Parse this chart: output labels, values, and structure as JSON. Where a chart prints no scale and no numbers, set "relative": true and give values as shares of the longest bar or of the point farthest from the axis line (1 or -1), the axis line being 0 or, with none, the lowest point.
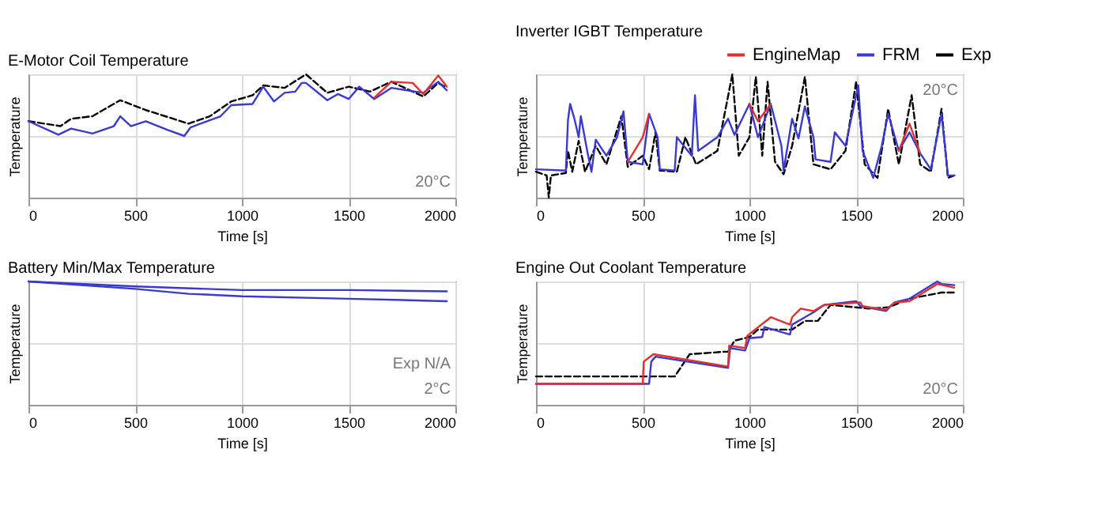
{
  "chart_data": [
    {
      "type": "line",
      "title": "E-Motor Coil Temperature",
      "xlabel": "Time [s]",
      "ylabel": "Temperature",
      "relative": true,
      "xlim": [
        0,
        2000
      ],
      "xticks": [
        0,
        500,
        1000,
        1500,
        2000
      ],
      "grid": true,
      "legend": false,
      "annotations": [
        "20°C"
      ],
      "series": [
        {
          "color": "#e03030",
          "x": [
            1620,
            1700,
            1800,
            1850,
            1920,
            1960
          ],
          "values": [
            0.81,
            0.94,
            0.93,
            0.84,
            0.99,
            0.9
          ]
        },
        {
          "color": "#3a3ad0",
          "x": [
            0,
            140,
            200,
            300,
            400,
            430,
            480,
            550,
            650,
            730,
            760,
            900,
            950,
            1050,
            1100,
            1150,
            1200,
            1250,
            1280,
            1300,
            1400,
            1450,
            1500,
            1550,
            1620,
            1700,
            1850,
            1920,
            1960
          ],
          "values": [
            0.62,
            0.51,
            0.56,
            0.52,
            0.58,
            0.66,
            0.58,
            0.62,
            0.55,
            0.5,
            0.57,
            0.66,
            0.75,
            0.76,
            0.9,
            0.78,
            0.85,
            0.86,
            0.93,
            0.93,
            0.79,
            0.84,
            0.8,
            0.9,
            0.8,
            0.89,
            0.85,
            0.94,
            0.87
          ]
        },
        {
          "color": "#000000",
          "line_style": "dashed",
          "x": [
            0,
            150,
            200,
            300,
            430,
            550,
            750,
            850,
            950,
            1050,
            1100,
            1200,
            1300,
            1400,
            1500,
            1600,
            1700,
            1850,
            1920,
            1960
          ],
          "values": [
            0.62,
            0.58,
            0.64,
            0.66,
            0.79,
            0.71,
            0.6,
            0.66,
            0.78,
            0.83,
            0.91,
            0.89,
            1.0,
            0.85,
            0.9,
            0.86,
            0.94,
            0.82,
            0.93,
            0.89
          ]
        }
      ]
    },
    {
      "type": "line",
      "title": "Inverter IGBT Temperature",
      "xlabel": "Time [s]",
      "ylabel": "Temperature",
      "relative": true,
      "xlim": [
        0,
        2000
      ],
      "xticks": [
        0,
        500,
        1000,
        1500,
        2000
      ],
      "grid": true,
      "legend": "top right",
      "annotations": [
        "20°C"
      ],
      "series": [
        {
          "name": "EngineMap",
          "color": "#e03030",
          "x": [
            430,
            500,
            530,
            800,
            1000,
            1040,
            1100,
            1400,
            1700,
            1750,
            1800
          ],
          "values": [
            0.29,
            0.49,
            0.68,
            null,
            0.76,
            0.62,
            0.76,
            null,
            0.38,
            0.6,
            0.36
          ]
        },
        {
          "name": "FRM",
          "color": "#3a3ad0",
          "x": [
            0,
            140,
            150,
            160,
            180,
            200,
            210,
            240,
            260,
            280,
            330,
            380,
            410,
            430,
            500,
            530,
            570,
            580,
            650,
            660,
            730,
            745,
            760,
            850,
            900,
            930,
            1000,
            1040,
            1100,
            1150,
            1160,
            1200,
            1230,
            1260,
            1300,
            1310,
            1380,
            1400,
            1450,
            1510,
            1530,
            1580,
            1620,
            1650,
            1700,
            1750,
            1800,
            1850,
            1900,
            1930,
            1960
          ],
          "values": [
            0.23,
            0.22,
            0.63,
            0.76,
            0.64,
            0.49,
            0.66,
            0.38,
            0.21,
            0.47,
            0.34,
            0.49,
            0.7,
            0.29,
            0.27,
            0.68,
            0.49,
            0.23,
            0.22,
            0.49,
            0.34,
            0.83,
            0.38,
            0.49,
            0.64,
            0.51,
            0.76,
            0.49,
            0.76,
            0.42,
            0.22,
            0.64,
            0.48,
            0.74,
            0.49,
            0.31,
            0.29,
            0.53,
            0.42,
            0.91,
            0.38,
            0.16,
            0.42,
            0.68,
            0.38,
            0.53,
            0.36,
            0.23,
            0.68,
            0.18,
            0.18
          ]
        },
        {
          "name": "Exp",
          "color": "#000000",
          "line_style": "dashed",
          "x": [
            0,
            50,
            60,
            70,
            140,
            150,
            170,
            200,
            230,
            280,
            330,
            400,
            430,
            500,
            530,
            560,
            580,
            660,
            700,
            750,
            850,
            920,
            950,
            1000,
            1030,
            1060,
            1085,
            1120,
            1160,
            1200,
            1260,
            1300,
            1380,
            1450,
            1500,
            1540,
            1600,
            1650,
            1700,
            1760,
            1800,
            1850,
            1900,
            1930,
            1960
          ],
          "values": [
            0.21,
            0.18,
            0,
            0.18,
            0.2,
            0.38,
            0.21,
            0.46,
            0.21,
            0.42,
            0.27,
            0.66,
            0.25,
            0.34,
            0.23,
            0.53,
            0.22,
            0.21,
            0.49,
            0.27,
            0.38,
            1.0,
            0.34,
            0.49,
            0.98,
            0.34,
            0.94,
            0.29,
            0.19,
            0.42,
            0.98,
            0.27,
            0.23,
            0.38,
            0.94,
            0.27,
            0.16,
            0.72,
            0.27,
            0.83,
            0.27,
            0.21,
            0.72,
            0.16,
            0.18
          ]
        }
      ]
    },
    {
      "type": "line",
      "title": "Battery Min/Max Temperature",
      "xlabel": "Time [s]",
      "ylabel": "Temperature",
      "relative": true,
      "xlim": [
        0,
        2000
      ],
      "xticks": [
        0,
        500,
        1000,
        1500,
        2000
      ],
      "grid": true,
      "legend": false,
      "annotations": [
        "Exp N/A",
        "2°C"
      ],
      "series": [
        {
          "color": "#3a3ad0",
          "x": [
            0,
            500,
            1000,
            1500,
            1960
          ],
          "values": [
            1.0,
            0.96,
            0.93,
            0.93,
            0.92
          ]
        },
        {
          "color": "#3a3ad0",
          "x": [
            0,
            500,
            750,
            1000,
            1500,
            1960
          ],
          "values": [
            1.0,
            0.94,
            0.9,
            0.88,
            0.86,
            0.84
          ]
        }
      ]
    },
    {
      "type": "line",
      "title": "Engine Out Coolant Temperature",
      "xlabel": "Time [s]",
      "ylabel": "Temperature",
      "relative": true,
      "xlim": [
        0,
        2000
      ],
      "xticks": [
        0,
        500,
        1000,
        1500,
        2000
      ],
      "grid": true,
      "legend": false,
      "annotations": [
        "20°C"
      ],
      "series": [
        {
          "color": "#e03030",
          "x": [
            0,
            500,
            505,
            550,
            900,
            905,
            980,
            990,
            1100,
            1190,
            1200,
            1240,
            1300,
            1350,
            1520,
            1530,
            1640,
            1680,
            1750,
            1880,
            1960
          ],
          "values": [
            0.17,
            0.17,
            0.35,
            0.41,
            0.31,
            0.48,
            0.46,
            0.56,
            0.71,
            0.65,
            0.71,
            0.78,
            0.76,
            0.81,
            0.83,
            0.8,
            0.77,
            0.83,
            0.84,
            0.98,
            0.95
          ]
        },
        {
          "color": "#3a3ad0",
          "x": [
            0,
            530,
            540,
            560,
            900,
            910,
            980,
            1000,
            1060,
            1070,
            1190,
            1200,
            1260,
            1300,
            1350,
            1500,
            1520,
            1640,
            1680,
            1750,
            1880,
            1900,
            1960
          ],
          "values": [
            0.17,
            0.17,
            0.35,
            0.39,
            0.3,
            0.46,
            0.44,
            0.54,
            0.55,
            0.63,
            0.57,
            0.65,
            0.71,
            0.75,
            0.81,
            0.84,
            0.8,
            0.76,
            0.83,
            0.86,
            1.0,
            0.98,
            0.97
          ]
        },
        {
          "color": "#000000",
          "line_style": "dashed",
          "x": [
            0,
            650,
            720,
            880,
            900,
            930,
            1000,
            1040,
            1200,
            1260,
            1320,
            1380,
            1500,
            1560,
            1650,
            1750,
            1900,
            1960
          ],
          "values": [
            0.23,
            0.23,
            0.41,
            0.43,
            0.43,
            0.52,
            0.55,
            0.61,
            0.61,
            0.68,
            0.68,
            0.81,
            0.79,
            0.78,
            0.79,
            0.86,
            0.91,
            0.91
          ]
        }
      ]
    }
  ]
}
